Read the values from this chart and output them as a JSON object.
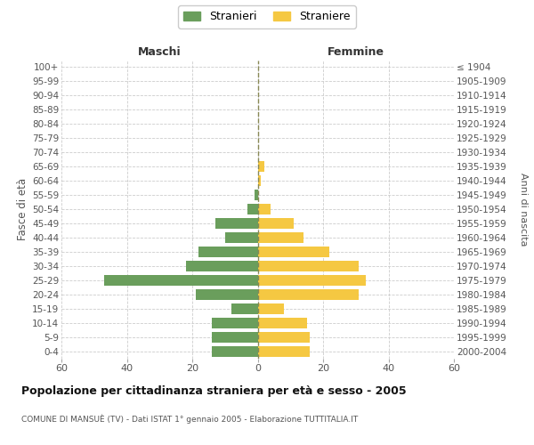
{
  "age_groups": [
    "100+",
    "95-99",
    "90-94",
    "85-89",
    "80-84",
    "75-79",
    "70-74",
    "65-69",
    "60-64",
    "55-59",
    "50-54",
    "45-49",
    "40-44",
    "35-39",
    "30-34",
    "25-29",
    "20-24",
    "15-19",
    "10-14",
    "5-9",
    "0-4"
  ],
  "birth_years": [
    "≤ 1904",
    "1905-1909",
    "1910-1914",
    "1915-1919",
    "1920-1924",
    "1925-1929",
    "1930-1934",
    "1935-1939",
    "1940-1944",
    "1945-1949",
    "1950-1954",
    "1955-1959",
    "1960-1964",
    "1965-1969",
    "1970-1974",
    "1975-1979",
    "1980-1984",
    "1985-1989",
    "1990-1994",
    "1995-1999",
    "2000-2004"
  ],
  "males": [
    0,
    0,
    0,
    0,
    0,
    0,
    0,
    0,
    0,
    1,
    3,
    13,
    10,
    18,
    22,
    47,
    19,
    8,
    14,
    14,
    14
  ],
  "females": [
    0,
    0,
    0,
    0,
    0,
    0,
    0,
    2,
    1,
    0,
    4,
    11,
    14,
    22,
    31,
    33,
    31,
    8,
    15,
    16,
    16
  ],
  "male_color": "#6a9e5c",
  "female_color": "#f5c842",
  "male_label": "Stranieri",
  "female_label": "Straniere",
  "xlim": 60,
  "title": "Popolazione per cittadinanza straniera per età e sesso - 2005",
  "subtitle": "COMUNE DI MANSUÈ (TV) - Dati ISTAT 1° gennaio 2005 - Elaborazione TUTTITALIA.IT",
  "ylabel_left": "Fasce di età",
  "ylabel_right": "Anni di nascita",
  "col_left": "Maschi",
  "col_right": "Femmine",
  "background_color": "#ffffff",
  "grid_color": "#cccccc",
  "bar_height": 0.75
}
